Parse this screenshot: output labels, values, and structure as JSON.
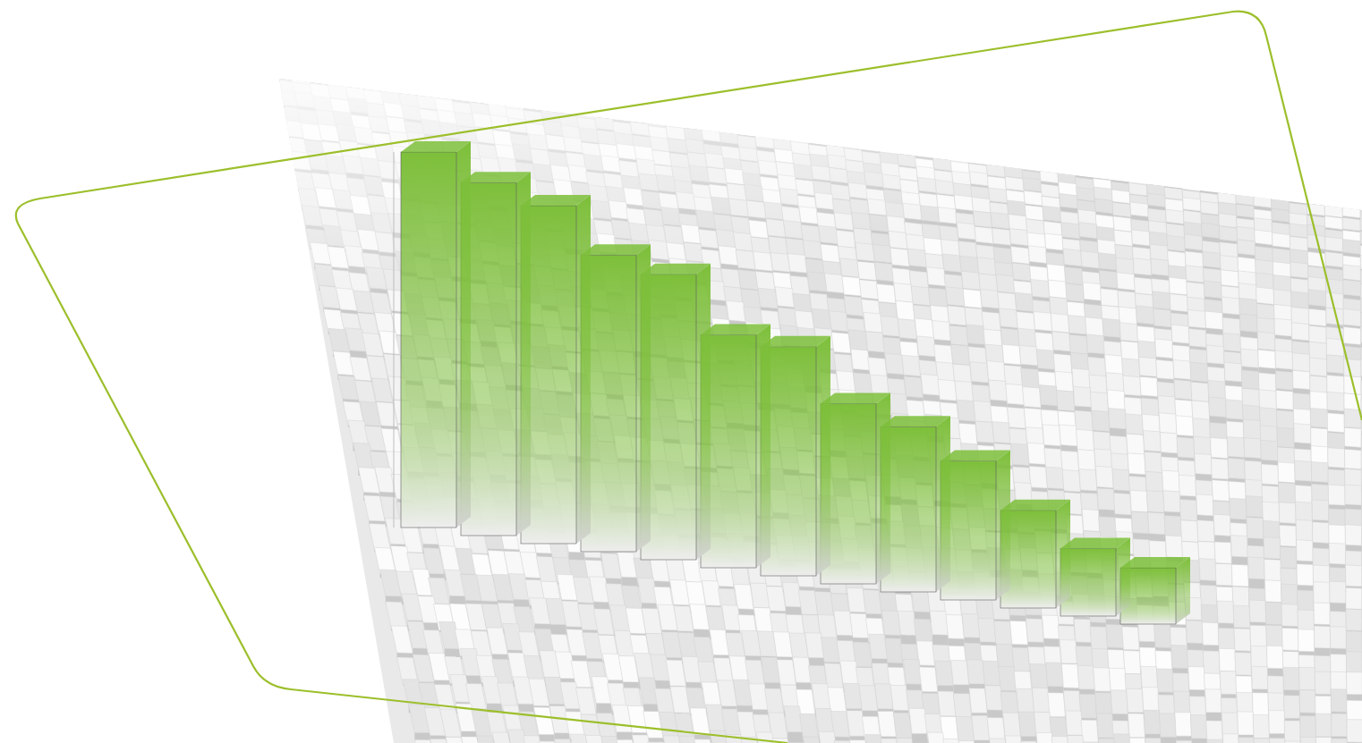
{
  "chart_data": {
    "type": "bar",
    "categories": [
      null,
      null,
      null,
      null,
      null,
      null,
      null,
      null,
      null,
      null,
      null,
      null,
      null
    ],
    "values": [
      100,
      94,
      90,
      79,
      76,
      62,
      61,
      48,
      44,
      37,
      26,
      18,
      15
    ],
    "color": "#7dbf3a",
    "ylim": [
      0,
      100
    ],
    "tick_labels": false
  }
}
